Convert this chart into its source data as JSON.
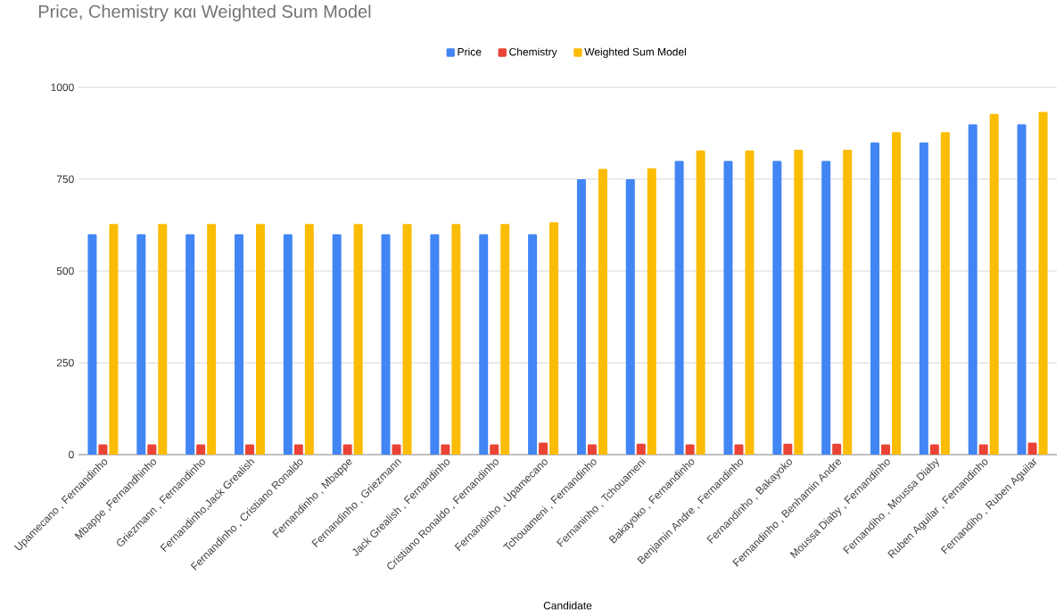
{
  "chart_data": {
    "type": "bar",
    "title": "Price, Chemistry και Weighted Sum Model",
    "xlabel": "Candidate",
    "categories": [
      "Upamecano , Fernandinho",
      "Mbappe ,Fernandhinho",
      "Griezmann , Fernandinho",
      "Fernandinho,Jack Grealish",
      "Fernandinho , Cristiano Ronaldo",
      "Fernandinho , Mbappe",
      "Fernandinho , Griezmann",
      "Jack Grealish , Fernandinho",
      "Cristiano Ronaldo , Fernandinho",
      "Fernandinho , Upamecano",
      "Tchouameni , Fernandinho",
      "Fernaninho , Tchouameni",
      "Bakayoko , Fernandinho",
      "Benjamin Andre , Fernandinho",
      "Fernandinho , Bakayoko",
      "Fernandinho , Benhamin Andre",
      "Moussa Diaby , Fernandinho",
      "Fernandiho , Moussa Diaby",
      "Ruben Aguilar , Fernandinho",
      "Fernandiho , Ruben Aguilar"
    ],
    "series": [
      {
        "name": "Price",
        "color": "#4285f4",
        "values": [
          600,
          600,
          600,
          600,
          600,
          600,
          600,
          600,
          600,
          600,
          750,
          750,
          800,
          800,
          800,
          800,
          850,
          850,
          900,
          900
        ]
      },
      {
        "name": "Chemistry",
        "color": "#ea4335",
        "values": [
          28,
          28,
          28,
          28,
          28,
          28,
          28,
          28,
          28,
          33,
          28,
          30,
          28,
          28,
          30,
          30,
          28,
          28,
          28,
          33
        ]
      },
      {
        "name": "Weighted Sum Model",
        "color": "#fbbc04",
        "values": [
          628,
          628,
          628,
          628,
          628,
          628,
          628,
          628,
          628,
          633,
          778,
          780,
          828,
          828,
          830,
          830,
          878,
          878,
          928,
          933
        ]
      }
    ],
    "ylim": [
      0,
      1000
    ],
    "yticks": [
      0,
      250,
      500,
      750,
      1000
    ],
    "grid": "y",
    "legend": "top"
  }
}
